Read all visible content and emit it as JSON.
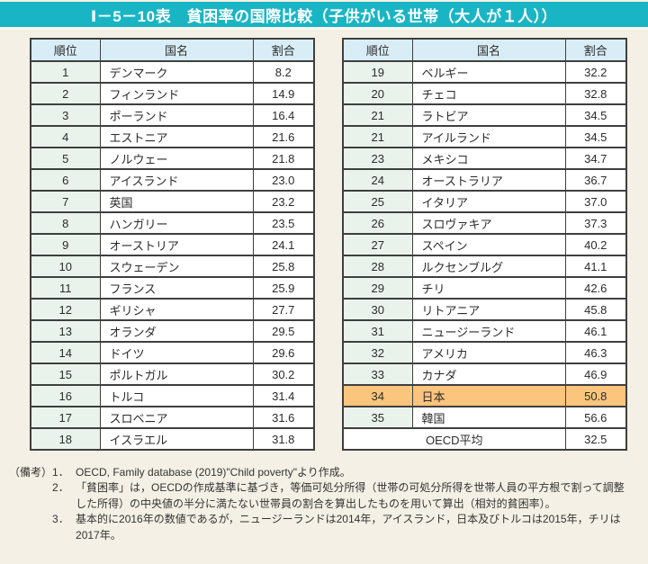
{
  "title": "Ⅰ－5－10表　貧困率の国際比較（子供がいる世帯（大人が１人））",
  "colors": {
    "title_bar_bg": "#1ab5c4",
    "page_bg": "#f4f0e5",
    "header_bg": "#d9edf6",
    "rank_bg": "#eaf3eb",
    "highlight_bg": "#fcc57d",
    "border": "#3f3f3f"
  },
  "tables": [
    {
      "headers": {
        "rank": "順位",
        "country": "国名",
        "value": "割合"
      },
      "rows": [
        {
          "rank": "1",
          "country": "デンマーク",
          "value": "8.2"
        },
        {
          "rank": "2",
          "country": "フィンランド",
          "value": "14.9"
        },
        {
          "rank": "3",
          "country": "ポーランド",
          "value": "16.4"
        },
        {
          "rank": "4",
          "country": "エストニア",
          "value": "21.6"
        },
        {
          "rank": "5",
          "country": "ノルウェー",
          "value": "21.8"
        },
        {
          "rank": "6",
          "country": "アイスランド",
          "value": "23.0"
        },
        {
          "rank": "7",
          "country": "英国",
          "value": "23.2"
        },
        {
          "rank": "8",
          "country": "ハンガリー",
          "value": "23.5"
        },
        {
          "rank": "9",
          "country": "オーストリア",
          "value": "24.1"
        },
        {
          "rank": "10",
          "country": "スウェーデン",
          "value": "25.8"
        },
        {
          "rank": "11",
          "country": "フランス",
          "value": "25.9"
        },
        {
          "rank": "12",
          "country": "ギリシャ",
          "value": "27.7"
        },
        {
          "rank": "13",
          "country": "オランダ",
          "value": "29.5"
        },
        {
          "rank": "14",
          "country": "ドイツ",
          "value": "29.6"
        },
        {
          "rank": "15",
          "country": "ポルトガル",
          "value": "30.2"
        },
        {
          "rank": "16",
          "country": "トルコ",
          "value": "31.4"
        },
        {
          "rank": "17",
          "country": "スロベニア",
          "value": "31.6"
        },
        {
          "rank": "18",
          "country": "イスラエル",
          "value": "31.8"
        }
      ]
    },
    {
      "headers": {
        "rank": "順位",
        "country": "国名",
        "value": "割合"
      },
      "rows": [
        {
          "rank": "19",
          "country": "ベルギー",
          "value": "32.2"
        },
        {
          "rank": "20",
          "country": "チェコ",
          "value": "32.8"
        },
        {
          "rank": "21",
          "country": "ラトビア",
          "value": "34.5"
        },
        {
          "rank": "21",
          "country": "アイルランド",
          "value": "34.5"
        },
        {
          "rank": "23",
          "country": "メキシコ",
          "value": "34.7"
        },
        {
          "rank": "24",
          "country": "オーストラリア",
          "value": "36.7"
        },
        {
          "rank": "25",
          "country": "イタリア",
          "value": "37.0"
        },
        {
          "rank": "26",
          "country": "スロヴァキア",
          "value": "37.3"
        },
        {
          "rank": "27",
          "country": "スペイン",
          "value": "40.2"
        },
        {
          "rank": "28",
          "country": "ルクセンブルグ",
          "value": "41.1"
        },
        {
          "rank": "29",
          "country": "チリ",
          "value": "42.6"
        },
        {
          "rank": "30",
          "country": "リトアニア",
          "value": "45.8"
        },
        {
          "rank": "31",
          "country": "ニュージーランド",
          "value": "46.1"
        },
        {
          "rank": "32",
          "country": "アメリカ",
          "value": "46.3"
        },
        {
          "rank": "33",
          "country": "カナダ",
          "value": "46.9"
        },
        {
          "rank": "34",
          "country": "日本",
          "value": "50.8",
          "highlight": true
        },
        {
          "rank": "35",
          "country": "韓国",
          "value": "56.6"
        }
      ],
      "footer_row": {
        "label": "OECD平均",
        "value": "32.5"
      }
    }
  ],
  "notes": {
    "label": "（備考）",
    "items": [
      {
        "num": "1．",
        "text": "OECD, Family database (2019)\"Child poverty\"より作成。"
      },
      {
        "num": "2．",
        "text": "「貧困率」は，OECDの作成基準に基づき，等価可処分所得（世帯の可処分所得を世帯人員の平方根で割って調整した所得）の中央値の半分に満たない世帯員の割合を算出したものを用いて算出（相対的貧困率）。"
      },
      {
        "num": "3．",
        "text": "基本的に2016年の数値であるが，ニュージーランドは2014年，アイスランド，日本及びトルコは2015年，チリは2017年。"
      }
    ]
  }
}
